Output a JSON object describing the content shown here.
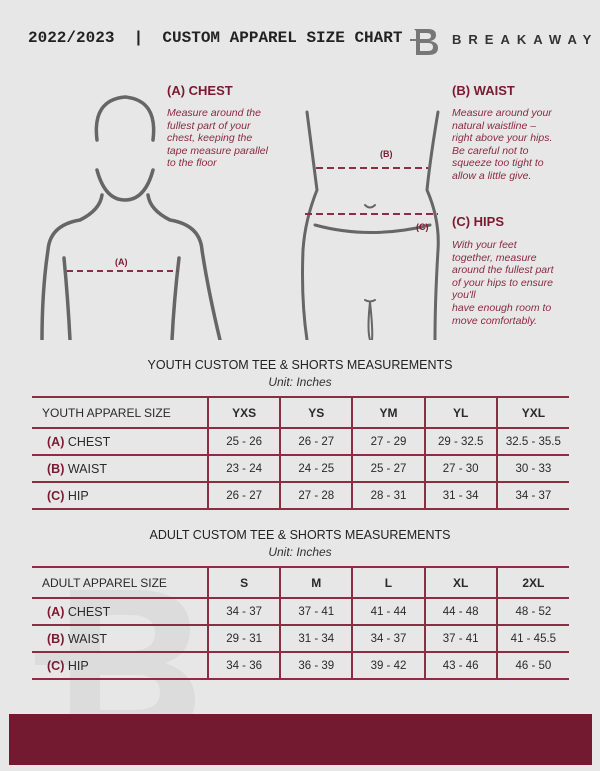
{
  "header": {
    "title": "2022/2023  |  CUSTOM APPAREL SIZE CHART",
    "brand": "BREAKAWAY"
  },
  "guide": {
    "chest": {
      "marker": "(A)",
      "title": "(A) CHEST",
      "text": [
        "Measure around the",
        "fullest part of your",
        "chest, keeping the",
        "tape measure parallel",
        "to the floor"
      ]
    },
    "waist": {
      "marker": "(B)",
      "title": "(B) WAIST",
      "text": [
        "Measure around your",
        "natural waistline –",
        "right above your hips.",
        "Be careful not to",
        "squeeze too tight to",
        "allow a little give."
      ]
    },
    "hips": {
      "marker": "(C)",
      "title": "(C) HIPS",
      "text": [
        "With your feet",
        "together, measure",
        "around the fullest part",
        "of your hips to ensure",
        "you'll",
        "have enough room to",
        "move comfortably."
      ]
    }
  },
  "youth": {
    "heading": "YOUTH CUSTOM TEE & SHORTS MEASUREMENTS",
    "unit": "Unit: Inches",
    "header": "YOUTH APPAREL SIZE",
    "sizes": [
      "YXS",
      "YS",
      "YM",
      "YL",
      "YXL"
    ],
    "rows": [
      {
        "letter": "(A)",
        "name": "CHEST",
        "values": [
          "25 - 26",
          "26 - 27",
          "27 - 29",
          "29 - 32.5",
          "32.5 - 35.5"
        ]
      },
      {
        "letter": "(B)",
        "name": "WAIST",
        "values": [
          "23 - 24",
          "24 - 25",
          "25 - 27",
          "27 - 30",
          "30 - 33"
        ]
      },
      {
        "letter": "(C)",
        "name": "HIP",
        "values": [
          "26 - 27",
          "27 - 28",
          "28 - 31",
          "31 - 34",
          "34 - 37"
        ]
      }
    ]
  },
  "adult": {
    "heading": "ADULT CUSTOM TEE & SHORTS MEASUREMENTS",
    "unit": "Unit: Inches",
    "header": "ADULT APPAREL SIZE",
    "sizes": [
      "S",
      "M",
      "L",
      "XL",
      "2XL"
    ],
    "rows": [
      {
        "letter": "(A)",
        "name": "CHEST",
        "values": [
          "34 - 37",
          "37 - 41",
          "41 - 44",
          "44 - 48",
          "48 - 52"
        ]
      },
      {
        "letter": "(B)",
        "name": "WAIST",
        "values": [
          "29 - 31",
          "31 - 34",
          "34 - 37",
          "37 - 41",
          "41 - 45.5"
        ]
      },
      {
        "letter": "(C)",
        "name": "HIP",
        "values": [
          "34 - 36",
          "36 - 39",
          "39 - 42",
          "43 - 46",
          "46 - 50"
        ]
      }
    ]
  },
  "colors": {
    "accent": "#7a1a30",
    "footer": "#731a30",
    "background": "#e7e7e8"
  }
}
